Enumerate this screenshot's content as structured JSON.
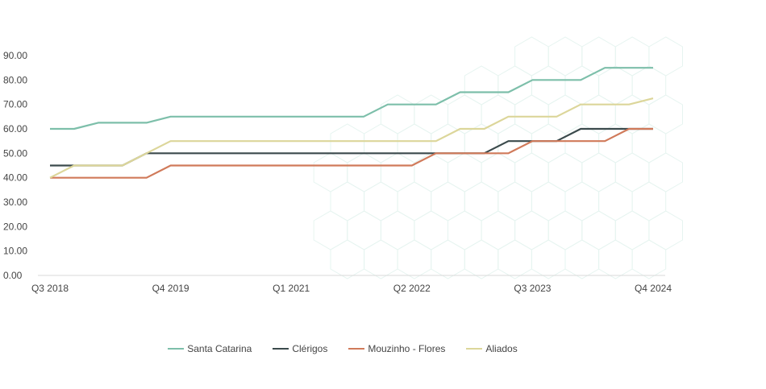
{
  "chart_data": {
    "type": "line",
    "title": "",
    "xlabel": "",
    "ylabel": "",
    "ylim": [
      0,
      90
    ],
    "y_ticks": [
      "0.00",
      "10.00",
      "20.00",
      "30.00",
      "40.00",
      "50.00",
      "60.00",
      "70.00",
      "80.00",
      "90.00"
    ],
    "x": [
      "Q3 2018",
      "Q4 2018",
      "Q1 2019",
      "Q2 2019",
      "Q3 2019",
      "Q4 2019",
      "Q1 2020",
      "Q2 2020",
      "Q3 2020",
      "Q4 2020",
      "Q1 2021",
      "Q2 2021",
      "Q3 2021",
      "Q4 2021",
      "Q1 2022",
      "Q2 2022",
      "Q3 2022",
      "Q4 2022",
      "Q1 2023",
      "Q2 2023",
      "Q3 2023",
      "Q4 2023",
      "Q1 2024",
      "Q2 2024",
      "Q3 2024",
      "Q4 2024"
    ],
    "x_tick_labels": [
      "Q3 2018",
      "Q4 2019",
      "Q1 2021",
      "Q2 2022",
      "Q3 2023",
      "Q4 2024"
    ],
    "grid": false,
    "legend_position": "bottom",
    "series": [
      {
        "name": "Santa Catarina",
        "color": "#7dbfaa",
        "values": [
          60,
          60,
          62.5,
          62.5,
          62.5,
          65,
          65,
          65,
          65,
          65,
          65,
          65,
          65,
          65,
          70,
          70,
          70,
          75,
          75,
          75,
          80,
          80,
          80,
          85,
          85,
          85
        ]
      },
      {
        "name": "Clérigos",
        "color": "#3b4a4c",
        "values": [
          45,
          45,
          45,
          45,
          50,
          50,
          50,
          50,
          50,
          50,
          50,
          50,
          50,
          50,
          50,
          50,
          50,
          50,
          50,
          55,
          55,
          55,
          60,
          60,
          60,
          60
        ]
      },
      {
        "name": "Mouzinho - Flores",
        "color": "#d07a5a",
        "values": [
          40,
          40,
          40,
          40,
          40,
          45,
          45,
          45,
          45,
          45,
          45,
          45,
          45,
          45,
          45,
          45,
          50,
          50,
          50,
          50,
          55,
          55,
          55,
          55,
          60,
          60
        ]
      },
      {
        "name": "Aliados",
        "color": "#dcd69a",
        "values": [
          40,
          45,
          45,
          45,
          50,
          55,
          55,
          55,
          55,
          55,
          55,
          55,
          55,
          55,
          55,
          55,
          55,
          60,
          60,
          65,
          65,
          65,
          70,
          70,
          70,
          72.5
        ]
      }
    ]
  }
}
